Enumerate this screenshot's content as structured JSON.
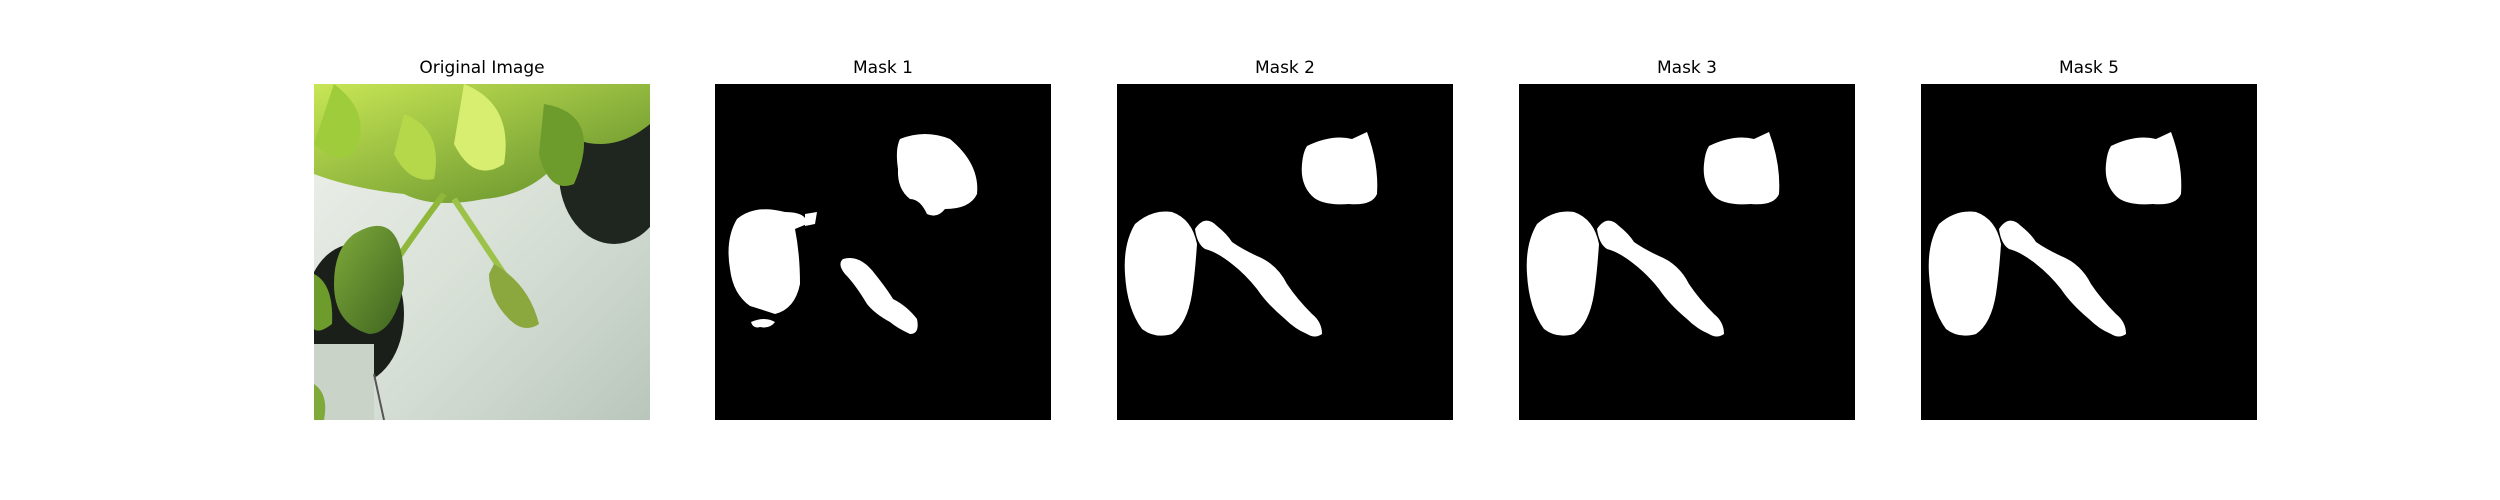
{
  "panels": [
    {
      "title": "Original Image",
      "kind": "photo"
    },
    {
      "title": "Mask 1",
      "kind": "mask",
      "variant": "mask1"
    },
    {
      "title": "Mask 2",
      "kind": "mask",
      "variant": "full"
    },
    {
      "title": "Mask 3",
      "kind": "mask",
      "variant": "full"
    },
    {
      "title": "Mask 5",
      "kind": "mask",
      "variant": "full"
    }
  ],
  "colors": {
    "mask_background": "#000000",
    "mask_foreground": "#ffffff",
    "leaf_bright": "#b7dc3f",
    "leaf_dark": "#5c8a28",
    "surface": "#d6dfd6",
    "pot": "#1a1f1a"
  }
}
